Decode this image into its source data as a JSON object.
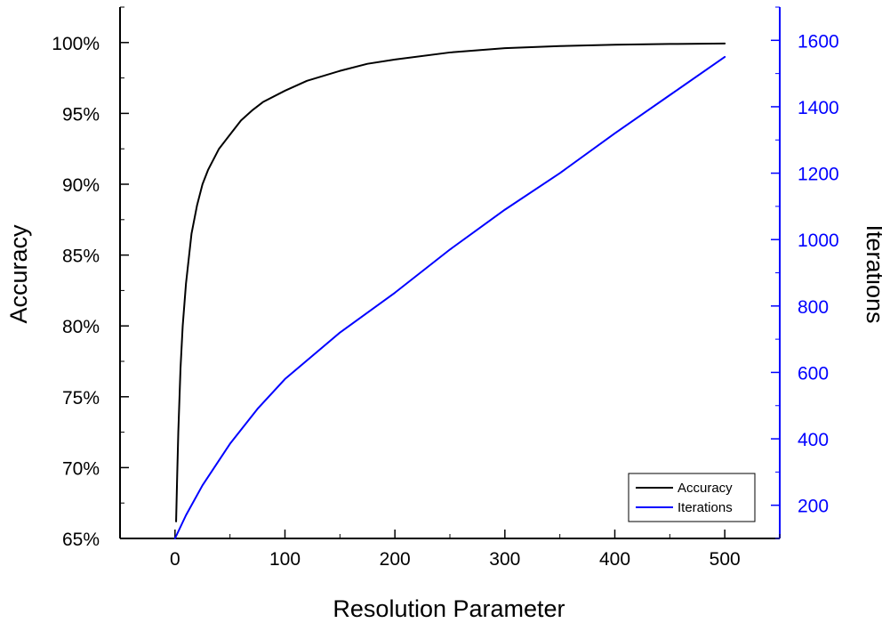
{
  "chart_data": {
    "type": "line",
    "xlabel": "Resolution Parameter",
    "ylabel_left": "Accuracy",
    "ylabel_right": "Iterations",
    "xlim": [
      -50,
      550
    ],
    "ylim_left": [
      65,
      102.5
    ],
    "ylim_right": [
      100,
      1700
    ],
    "x_ticks": [
      0,
      100,
      200,
      300,
      400,
      500
    ],
    "y_left_ticks": [
      65,
      70,
      75,
      80,
      85,
      90,
      95,
      100
    ],
    "y_left_tick_labels": [
      "65%",
      "70%",
      "75%",
      "80%",
      "85%",
      "90%",
      "95%",
      "100%"
    ],
    "y_right_ticks": [
      200,
      400,
      600,
      800,
      1000,
      1200,
      1400,
      1600
    ],
    "legend_position": "bottom-right",
    "grid": false,
    "series": [
      {
        "name": "Accuracy",
        "axis": "left",
        "color": "#000000",
        "x": [
          1,
          2,
          3,
          5,
          7,
          10,
          15,
          20,
          25,
          30,
          40,
          50,
          60,
          70,
          80,
          100,
          120,
          150,
          175,
          200,
          250,
          300,
          350,
          400,
          450,
          500
        ],
        "y": [
          66.2,
          69.5,
          72.5,
          77.0,
          80.0,
          83.0,
          86.5,
          88.5,
          90.0,
          91.0,
          92.5,
          93.5,
          94.5,
          95.2,
          95.8,
          96.6,
          97.3,
          98.0,
          98.5,
          98.8,
          99.3,
          99.6,
          99.75,
          99.85,
          99.9,
          99.93
        ]
      },
      {
        "name": "Iterations",
        "axis": "right",
        "color": "#0000ff",
        "x": [
          0,
          10,
          25,
          50,
          75,
          100,
          150,
          200,
          250,
          300,
          350,
          400,
          450,
          500
        ],
        "y": [
          100,
          170,
          260,
          385,
          490,
          580,
          720,
          840,
          970,
          1090,
          1200,
          1320,
          1435,
          1550
        ]
      }
    ]
  }
}
